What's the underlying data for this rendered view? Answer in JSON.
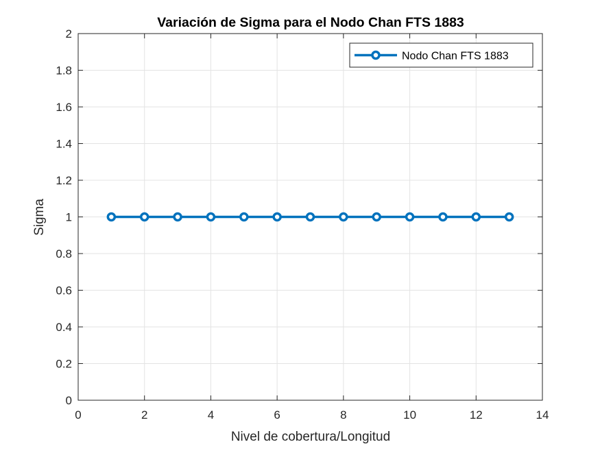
{
  "chart_data": {
    "type": "line",
    "title": "Variación de Sigma para el Nodo Chan FTS 1883",
    "xlabel": "Nivel de cobertura/Longitud",
    "ylabel": "Sigma",
    "xlim": [
      0,
      14
    ],
    "ylim": [
      0,
      2
    ],
    "xticks": [
      0,
      2,
      4,
      6,
      8,
      10,
      12,
      14
    ],
    "yticks": [
      0,
      0.2,
      0.4,
      0.6,
      0.8,
      1,
      1.2,
      1.4,
      1.6,
      1.8,
      2
    ],
    "xtick_labels": [
      "0",
      "2",
      "4",
      "6",
      "8",
      "10",
      "12",
      "14"
    ],
    "ytick_labels": [
      "0",
      "0.2",
      "0.4",
      "0.6",
      "0.8",
      "1",
      "1.2",
      "1.4",
      "1.6",
      "1.8",
      "2"
    ],
    "grid": true,
    "legend_position": "top-right",
    "series": [
      {
        "name": "Nodo Chan FTS 1883",
        "color": "#0072BD",
        "marker": "circle",
        "x": [
          1,
          2,
          3,
          4,
          5,
          6,
          7,
          8,
          9,
          10,
          11,
          12,
          13
        ],
        "y": [
          1,
          1,
          1,
          1,
          1,
          1,
          1,
          1,
          1,
          1,
          1,
          1,
          1
        ]
      }
    ]
  }
}
